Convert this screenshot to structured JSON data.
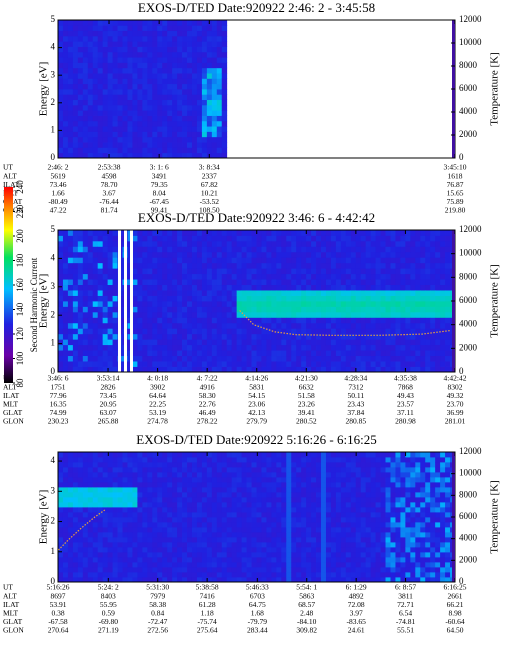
{
  "chart_data": [
    {
      "type": "spectrogram",
      "title": "EXOS-D/TED   Date:920922  2:46: 2 - 3:45:58",
      "ylabel": "Energy [eV]",
      "y2label": "Temperature [K]",
      "ylim": [
        0,
        5
      ],
      "yticks": [
        0,
        1,
        2,
        3,
        4,
        5
      ],
      "y2lim": [
        0,
        12000
      ],
      "y2ticks": [
        0,
        2000,
        4000,
        6000,
        8000,
        10000,
        12000
      ],
      "table": {
        "row_labels": [
          "UT",
          "ALT",
          "ILAT",
          "MLT",
          "GLAT",
          "GLON"
        ],
        "rows": [
          [
            "2:46: 2",
            "2:53:38",
            "3: 1: 6",
            "3: 8:34",
            "3:45:10"
          ],
          [
            "5619",
            "4598",
            "3491",
            "2337",
            "1618"
          ],
          [
            "73.46",
            "78.70",
            "79.35",
            "67.82",
            "76.87"
          ],
          [
            "1.66",
            "3.67",
            "8.04",
            "10.21",
            "15.65"
          ],
          [
            "-80.49",
            "-76.44",
            "-67.45",
            "-53.52",
            "75.89"
          ],
          [
            "47.22",
            "81.74",
            "99.41",
            "108.50",
            "219.80"
          ]
        ]
      }
    },
    {
      "type": "spectrogram",
      "title": "EXOS-D/TED   Date:920922  3:46: 6 - 4:42:42",
      "ylabel": "Energy [eV]",
      "y2label": "Temperature [K]",
      "ylim": [
        0,
        5
      ],
      "yticks": [
        0,
        1,
        2,
        3,
        4,
        5
      ],
      "y2lim": [
        0,
        12000
      ],
      "y2ticks": [
        0,
        2000,
        4000,
        6000,
        8000,
        10000,
        12000
      ],
      "series": [
        {
          "name": "Temperature",
          "axis": "y2",
          "color": "#e8a040",
          "x": [
            "4:12:00",
            "4:14:00",
            "4:17:00",
            "4:20:00",
            "4:25:00",
            "4:32:00",
            "4:38:00",
            "4:42:00"
          ],
          "values": [
            5200,
            4000,
            3400,
            3150,
            3100,
            3100,
            3200,
            3500
          ]
        }
      ],
      "table": {
        "row_labels": [
          "UT",
          "ALT",
          "ILAT",
          "MLT",
          "GLAT",
          "GLON"
        ],
        "rows": [
          [
            "3:46: 6",
            "3:53:14",
            "4: 0:18",
            "4: 7:22",
            "4:14:26",
            "4:21:30",
            "4:28:34",
            "4:35:38",
            "4:42:42"
          ],
          [
            "1751",
            "2826",
            "3902",
            "4916",
            "5831",
            "6632",
            "7312",
            "7868",
            "8302"
          ],
          [
            "77.96",
            "73.45",
            "64.64",
            "58.30",
            "54.15",
            "51.58",
            "50.11",
            "49.43",
            "49.32"
          ],
          [
            "16.35",
            "20.95",
            "22.25",
            "22.76",
            "23.06",
            "23.26",
            "23.43",
            "23.57",
            "23.70"
          ],
          [
            "74.99",
            "63.07",
            "53.19",
            "46.49",
            "42.13",
            "39.41",
            "37.84",
            "37.11",
            "36.99"
          ],
          [
            "230.23",
            "265.88",
            "274.78",
            "278.22",
            "279.79",
            "280.52",
            "280.85",
            "280.98",
            "281.01"
          ]
        ]
      },
      "colorbar": {
        "label": "Second Harmonic Current",
        "lim": [
          80,
          240
        ],
        "ticks": [
          80,
          100,
          120,
          140,
          160,
          180,
          200,
          220,
          240
        ]
      }
    },
    {
      "type": "spectrogram",
      "title": "EXOS-D/TED   Date:920922  5:16:26 - 6:16:25",
      "ylabel": "Energy [eV]",
      "y2label": "Temperature [K]",
      "ylim": [
        0,
        4.3
      ],
      "yticks": [
        0,
        1,
        2,
        3,
        4
      ],
      "y2lim": [
        0,
        12000
      ],
      "y2ticks": [
        0,
        2000,
        4000,
        6000,
        8000,
        10000,
        12000
      ],
      "series": [
        {
          "name": "Temperature",
          "axis": "y2",
          "color": "#e8a040",
          "x": [
            "5:16:30",
            "5:18:00",
            "5:20:00",
            "5:22:00",
            "5:23:30"
          ],
          "values": [
            2950,
            3900,
            5000,
            6000,
            6650
          ]
        }
      ],
      "table": {
        "row_labels": [
          "UT",
          "ALT",
          "ILAT",
          "MLT",
          "GLAT",
          "GLON"
        ],
        "rows": [
          [
            "5:16:26",
            "5:24: 2",
            "5:31:30",
            "5:38:58",
            "5:46:33",
            "5:54: 1",
            "6: 1:29",
            "6: 8:57",
            "6:16:25"
          ],
          [
            "8697",
            "8403",
            "7979",
            "7416",
            "6703",
            "5863",
            "4892",
            "3811",
            "2661"
          ],
          [
            "53.91",
            "55.95",
            "58.38",
            "61.28",
            "64.75",
            "68.57",
            "72.08",
            "72.71",
            "66.21"
          ],
          [
            "0.38",
            "0.59",
            "0.84",
            "1.18",
            "1.68",
            "2.48",
            "3.97",
            "6.54",
            "8.98"
          ],
          [
            "-67.58",
            "-69.80",
            "-72.47",
            "-75.74",
            "-79.79",
            "-84.10",
            "-83.65",
            "-74.81",
            "-60.64"
          ],
          [
            "270.64",
            "271.19",
            "272.56",
            "275.64",
            "283.44",
            "309.82",
            "24.61",
            "55.51",
            "64.50"
          ]
        ]
      }
    }
  ]
}
